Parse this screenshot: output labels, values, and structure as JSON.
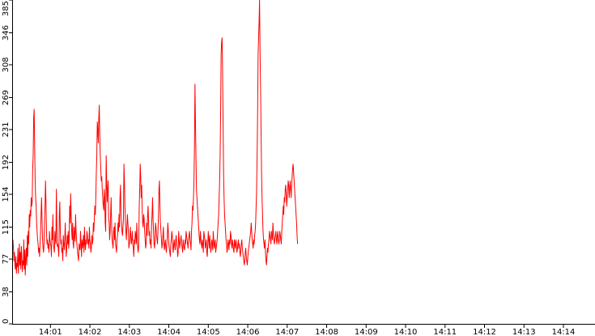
{
  "chart_data": {
    "type": "line",
    "title": "",
    "xlabel": "",
    "ylabel": "",
    "x_ticks": [
      "14:01",
      "14:02",
      "14:03",
      "14:04",
      "14:05",
      "14:06",
      "14:07",
      "14:08",
      "14:09",
      "14:10",
      "14:11",
      "14:12",
      "14:13",
      "14:14"
    ],
    "y_ticks": [
      "0",
      "38",
      "77",
      "115",
      "154",
      "192",
      "231",
      "269",
      "308",
      "346",
      "385"
    ],
    "ylim": [
      0,
      385
    ],
    "xlim_minutes": [
      0.05,
      14.8
    ],
    "grid": false,
    "legend": "none",
    "line_color": "#ff0000",
    "series": [
      {
        "sample_interval_minutes": 0.0125,
        "values": [
          100,
          90,
          75,
          85,
          70,
          65,
          80,
          60,
          72,
          68,
          90,
          60,
          75,
          95,
          70,
          85,
          65,
          92,
          80,
          62,
          75,
          70,
          100,
          65,
          88,
          58,
          78,
          90,
          70,
          105,
          80,
          110,
          95,
          130,
          115,
          135,
          128,
          150,
          140,
          145,
          185,
          200,
          245,
          255,
          210,
          170,
          150,
          140,
          120,
          110,
          100,
          95,
          85,
          90,
          80,
          95,
          110,
          130,
          150,
          125,
          100,
          90,
          85,
          95,
          120,
          140,
          170,
          145,
          110,
          95,
          100,
          90,
          95,
          85,
          110,
          100,
          95,
          92,
          80,
          115,
          100,
          130,
          95,
          90,
          85,
          110,
          100,
          95,
          160,
          115,
          92,
          95,
          88,
          80,
          130,
          145,
          110,
          95,
          100,
          85,
          90,
          75,
          105,
          95,
          88,
          100,
          120,
          95,
          80,
          90,
          105,
          95,
          110,
          90,
          100,
          140,
          120,
          155,
          130,
          110,
          100,
          120,
          95,
          90,
          115,
          105,
          98,
          130,
          110,
          100,
          92,
          85,
          80,
          75,
          95,
          90,
          88,
          110,
          95,
          80,
          100,
          90,
          95,
          105,
          85,
          115,
          95,
          88,
          100,
          95,
          110,
          105,
          95,
          100,
          90,
          115,
          100,
          95,
          85,
          90,
          105,
          95,
          100,
          120,
          110,
          125,
          140,
          130,
          150,
          180,
          200,
          240,
          230,
          215,
          245,
          260,
          225,
          200,
          185,
          170,
          175,
          160,
          150,
          140,
          135,
          160,
          150,
          120,
          110,
          200,
          170,
          145,
          160,
          170,
          125,
          120,
          100,
          110,
          130,
          150,
          120,
          100,
          95,
          90,
          110,
          115,
          100,
          120,
          95,
          90,
          85,
          100,
          105,
          120,
          110,
          130,
          115,
          150,
          165,
          130,
          120,
          110,
          105,
          115,
          125,
          190,
          170,
          140,
          120,
          110,
          100,
          115,
          130,
          120,
          110,
          90,
          95,
          100,
          115,
          105,
          95,
          100,
          110,
          95,
          90,
          80,
          100,
          95,
          110,
          105,
          95,
          120,
          100,
          90,
          85,
          95,
          140,
          160,
          190,
          175,
          150,
          165,
          135,
          120,
          115,
          130,
          125,
          110,
          100,
          90,
          95,
          120,
          105,
          130,
          140,
          120,
          105,
          110,
          95,
          100,
          90,
          115,
          130,
          150,
          125,
          110,
          95,
          90,
          100,
          120,
          115,
          105,
          100,
          95,
          110,
          130,
          160,
          170,
          140,
          120,
          110,
          100,
          90,
          95,
          105,
          115,
          95,
          88,
          95,
          100,
          90,
          85,
          95,
          105,
          120,
          110,
          95,
          90,
          85,
          80,
          95,
          100,
          110,
          105,
          90,
          85,
          95,
          100,
          92,
          88,
          100,
          105,
          95,
          90,
          80,
          85,
          110,
          100,
          90,
          95,
          100,
          105,
          95,
          90,
          85,
          100,
          95,
          90,
          88,
          100,
          95,
          110,
          105,
          100,
          95,
          90,
          100,
          105,
          110,
          100,
          95,
          88,
          110,
          120,
          140,
          135,
          150,
          170,
          210,
          285,
          240,
          200,
          160,
          150,
          140,
          130,
          120,
          110,
          100,
          95,
          110,
          100,
          95,
          90,
          100,
          95,
          85,
          110,
          105,
          100,
          90,
          95,
          100,
          85,
          80,
          95,
          110,
          100,
          90,
          105,
          95,
          85,
          90,
          100,
          95,
          88,
          110,
          100,
          90,
          95,
          100,
          85,
          90,
          95,
          100,
          110,
          120,
          130,
          150,
          170,
          200,
          250,
          320,
          335,
          340,
          300,
          240,
          180,
          150,
          130,
          120,
          110,
          100,
          95,
          85,
          90,
          100,
          95,
          88,
          100,
          95,
          110,
          105,
          95,
          90,
          100,
          95,
          88,
          85,
          100,
          95,
          90,
          100,
          95,
          85,
          88,
          95,
          100,
          90,
          95,
          85,
          80,
          88,
          95,
          100,
          90,
          85,
          80,
          75,
          70,
          75,
          85,
          90,
          80,
          75,
          70,
          78,
          85,
          90,
          95,
          100,
          105,
          110,
          120,
          110,
          100,
          95,
          90,
          100,
          95,
          105,
          110,
          120,
          140,
          160,
          200,
          250,
          320,
          340,
          360,
          385,
          320,
          280,
          230,
          180,
          150,
          130,
          110,
          100,
          95,
          90,
          100,
          85,
          75,
          70,
          80,
          90,
          85,
          95,
          100,
          110,
          105,
          100,
          95,
          110,
          105,
          100,
          120,
          110,
          100,
          95,
          100,
          105,
          110,
          100,
          95,
          105,
          110,
          100,
          95,
          100,
          110,
          105,
          100,
          95,
          110,
          120,
          130,
          140,
          130,
          150,
          145,
          160,
          165,
          155,
          140,
          150,
          160,
          170,
          165,
          150,
          160,
          170,
          160,
          150,
          165,
          175,
          185,
          190,
          180,
          170,
          160,
          150,
          140,
          130,
          120,
          105,
          95
        ]
      }
    ]
  }
}
